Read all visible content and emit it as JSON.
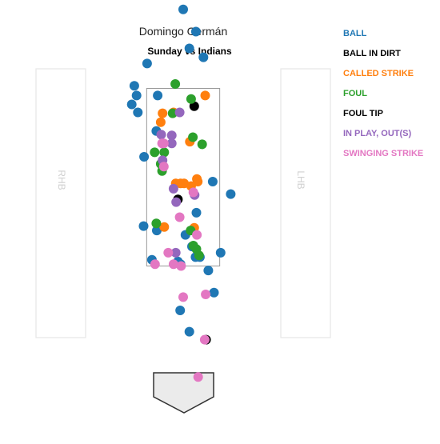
{
  "title": "Domingo Germán",
  "subtitle": "Sunday vs Indians",
  "batter_boxes": {
    "left_label": "RHB",
    "right_label": "LHB"
  },
  "legend": [
    {
      "key": "ball",
      "label": "BALL",
      "color": "#1f77b4"
    },
    {
      "key": "ball_in_dirt",
      "label": "BALL IN DIRT",
      "color": "#000000"
    },
    {
      "key": "called_strike",
      "label": "CALLED STRIKE",
      "color": "#ff7f0e"
    },
    {
      "key": "foul",
      "label": "FOUL",
      "color": "#2ca02c"
    },
    {
      "key": "foul_tip",
      "label": "FOUL TIP",
      "color": "#000000"
    },
    {
      "key": "in_play_out",
      "label": "IN PLAY, OUT(S)",
      "color": "#9467bd"
    },
    {
      "key": "swinging_strike",
      "label": "SWINGING STRIKE",
      "color": "#e377c2"
    }
  ],
  "chart_data": {
    "type": "scatter",
    "title": "Domingo Germán",
    "subtitle": "Sunday vs Indians",
    "xlabel": "",
    "ylabel": "",
    "xlim": [
      -2.7,
      2.7
    ],
    "ylim": [
      -1.0,
      5.0
    ],
    "strike_zone": {
      "x": [
        -0.83,
        0.83
      ],
      "y": [
        1.5,
        3.5
      ]
    },
    "legend_position": "top-right",
    "series": [
      {
        "name": "BALL",
        "color": "#1f77b4",
        "points": [
          [
            0.0,
            4.39
          ],
          [
            0.29,
            4.14
          ],
          [
            0.14,
            3.95
          ],
          [
            0.46,
            3.85
          ],
          [
            -0.82,
            3.78
          ],
          [
            -1.11,
            3.53
          ],
          [
            -1.06,
            3.42
          ],
          [
            -1.17,
            3.32
          ],
          [
            -1.03,
            3.23
          ],
          [
            -0.58,
            3.42
          ],
          [
            -0.61,
            3.02
          ],
          [
            -0.89,
            2.73
          ],
          [
            0.67,
            2.45
          ],
          [
            1.08,
            2.31
          ],
          [
            0.3,
            2.1
          ],
          [
            -0.9,
            1.95
          ],
          [
            -0.6,
            1.9
          ],
          [
            0.05,
            1.85
          ],
          [
            0.2,
            1.72
          ],
          [
            0.28,
            1.6
          ],
          [
            0.38,
            1.6
          ],
          [
            0.85,
            1.65
          ],
          [
            -0.71,
            1.57
          ],
          [
            -0.12,
            1.55
          ],
          [
            -0.06,
            1.52
          ],
          [
            0.57,
            1.45
          ],
          [
            0.7,
            1.2
          ],
          [
            -0.07,
            1.0
          ],
          [
            0.14,
            0.76
          ]
        ]
      },
      {
        "name": "BALL IN DIRT",
        "color": "#000000",
        "points": [
          [
            0.25,
            3.3
          ],
          [
            -0.12,
            2.25
          ],
          [
            0.52,
            0.67
          ]
        ]
      },
      {
        "name": "CALLED STRIKE",
        "color": "#ff7f0e",
        "points": [
          [
            0.5,
            3.42
          ],
          [
            -0.47,
            3.22
          ],
          [
            -0.51,
            3.12
          ],
          [
            -0.22,
            3.23
          ],
          [
            0.15,
            2.9
          ],
          [
            -0.17,
            2.43
          ],
          [
            -0.06,
            2.43
          ],
          [
            0.02,
            2.43
          ],
          [
            0.31,
            2.48
          ],
          [
            0.33,
            2.45
          ],
          [
            0.18,
            2.4
          ],
          [
            -0.43,
            1.94
          ],
          [
            0.25,
            1.93
          ]
        ]
      },
      {
        "name": "FOUL",
        "color": "#2ca02c",
        "points": [
          [
            -0.18,
            3.55
          ],
          [
            0.18,
            3.38
          ],
          [
            -0.24,
            3.22
          ],
          [
            0.22,
            2.95
          ],
          [
            0.43,
            2.87
          ],
          [
            -0.65,
            2.78
          ],
          [
            -0.43,
            2.78
          ],
          [
            -0.48,
            2.57
          ],
          [
            -0.51,
            2.65
          ],
          [
            -0.61,
            1.98
          ],
          [
            0.17,
            1.9
          ],
          [
            0.23,
            1.73
          ],
          [
            0.3,
            1.69
          ],
          [
            0.36,
            1.62
          ]
        ]
      },
      {
        "name": "IN PLAY, OUT(S)",
        "color": "#9467bd",
        "points": [
          [
            -0.08,
            3.23
          ],
          [
            -0.5,
            2.98
          ],
          [
            -0.26,
            2.97
          ],
          [
            -0.26,
            2.88
          ],
          [
            -0.47,
            2.69
          ],
          [
            -0.22,
            2.37
          ],
          [
            0.26,
            2.3
          ],
          [
            -0.16,
            2.22
          ],
          [
            -0.17,
            1.65
          ]
        ]
      },
      {
        "name": "SWINGING STRIKE",
        "color": "#e377c2",
        "points": [
          [
            -0.44,
            2.88
          ],
          [
            -0.48,
            2.88
          ],
          [
            -0.44,
            2.62
          ],
          [
            0.23,
            2.33
          ],
          [
            -0.08,
            2.05
          ],
          [
            0.31,
            1.85
          ],
          [
            -0.34,
            1.65
          ],
          [
            -0.22,
            1.52
          ],
          [
            -0.05,
            1.5
          ],
          [
            -0.64,
            1.52
          ],
          [
            0.0,
            1.15
          ],
          [
            0.51,
            1.18
          ],
          [
            0.49,
            0.67
          ],
          [
            0.34,
            0.25
          ]
        ]
      }
    ]
  }
}
